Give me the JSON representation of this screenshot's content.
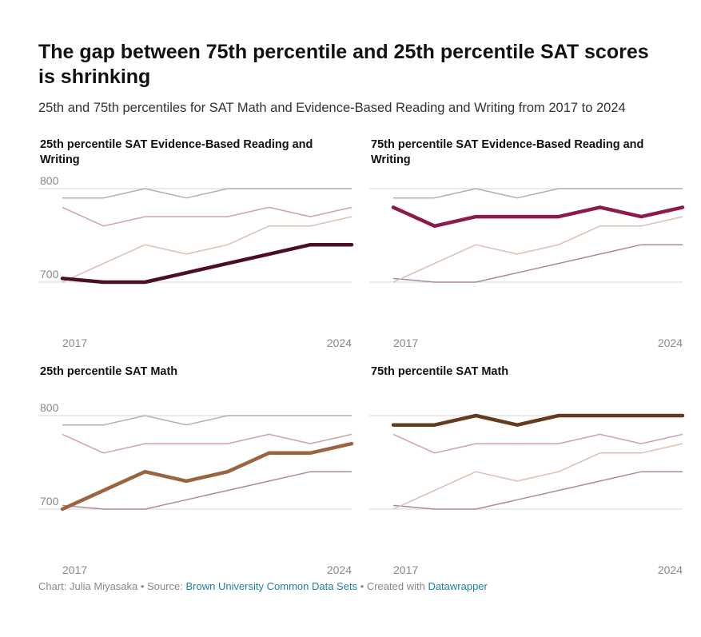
{
  "title": "The gap between 75th percentile and 25th percentile SAT scores is shrinking",
  "subtitle": "25th and 75th percentiles for SAT Math and Evidence-Based Reading and Writing from 2017 to 2024",
  "footer": {
    "chart_by": "Chart: Julia Miyasaka",
    "sep1": " • Source: ",
    "source": "Brown University Common Data Sets",
    "sep2": " • Created with ",
    "tool": "Datawrapper"
  },
  "colors": {
    "ebrw25": "#4a0f24",
    "ebrw75": "#8c1a4b",
    "math25": "#9a6440",
    "math75": "#663a1e",
    "context": {
      "ebrw25": "#ab8c9b",
      "ebrw75": "#cfa0ae",
      "math25": "#d8c0b2",
      "math75": "#bcaca3"
    },
    "grid": "#dddddd",
    "tick": "#888888"
  },
  "chart_data": [
    {
      "type": "line",
      "key": "ebrw25",
      "title": "25th percentile SAT Evidence-Based Reading and Writing",
      "x": [
        2017,
        2018,
        2019,
        2020,
        2021,
        2022,
        2023,
        2024
      ],
      "x_tick_labels": [
        "2017",
        "2024"
      ],
      "y_tick_labels": [
        "800",
        "700"
      ],
      "ylim": [
        700,
        800
      ],
      "series": [
        {
          "key": "ebrw25",
          "values": [
            704,
            700,
            700,
            710,
            720,
            730,
            740,
            740
          ]
        },
        {
          "key": "ebrw75",
          "values": [
            780,
            760,
            770,
            770,
            770,
            780,
            770,
            780
          ]
        },
        {
          "key": "math25",
          "values": [
            700,
            720,
            740,
            730,
            740,
            760,
            760,
            770
          ]
        },
        {
          "key": "math75",
          "values": [
            790,
            790,
            800,
            790,
            800,
            800,
            800,
            800
          ]
        }
      ]
    },
    {
      "type": "line",
      "key": "ebrw75",
      "title": "75th percentile SAT Evidence-Based Reading and Writing",
      "x": [
        2017,
        2018,
        2019,
        2020,
        2021,
        2022,
        2023,
        2024
      ],
      "x_tick_labels": [
        "2017",
        "2024"
      ],
      "y_tick_labels": [],
      "ylim": [
        700,
        800
      ],
      "series": [
        {
          "key": "ebrw25",
          "values": [
            704,
            700,
            700,
            710,
            720,
            730,
            740,
            740
          ]
        },
        {
          "key": "ebrw75",
          "values": [
            780,
            760,
            770,
            770,
            770,
            780,
            770,
            780
          ]
        },
        {
          "key": "math25",
          "values": [
            700,
            720,
            740,
            730,
            740,
            760,
            760,
            770
          ]
        },
        {
          "key": "math75",
          "values": [
            790,
            790,
            800,
            790,
            800,
            800,
            800,
            800
          ]
        }
      ]
    },
    {
      "type": "line",
      "key": "math25",
      "title": "25th percentile SAT Math",
      "x": [
        2017,
        2018,
        2019,
        2020,
        2021,
        2022,
        2023,
        2024
      ],
      "x_tick_labels": [
        "2017",
        "2024"
      ],
      "y_tick_labels": [
        "800",
        "700"
      ],
      "ylim": [
        700,
        800
      ],
      "series": [
        {
          "key": "ebrw25",
          "values": [
            704,
            700,
            700,
            710,
            720,
            730,
            740,
            740
          ]
        },
        {
          "key": "ebrw75",
          "values": [
            780,
            760,
            770,
            770,
            770,
            780,
            770,
            780
          ]
        },
        {
          "key": "math25",
          "values": [
            700,
            720,
            740,
            730,
            740,
            760,
            760,
            770
          ]
        },
        {
          "key": "math75",
          "values": [
            790,
            790,
            800,
            790,
            800,
            800,
            800,
            800
          ]
        }
      ]
    },
    {
      "type": "line",
      "key": "math75",
      "title": "75th percentile SAT Math",
      "x": [
        2017,
        2018,
        2019,
        2020,
        2021,
        2022,
        2023,
        2024
      ],
      "x_tick_labels": [
        "2017",
        "2024"
      ],
      "y_tick_labels": [],
      "ylim": [
        700,
        800
      ],
      "series": [
        {
          "key": "ebrw25",
          "values": [
            704,
            700,
            700,
            710,
            720,
            730,
            740,
            740
          ]
        },
        {
          "key": "ebrw75",
          "values": [
            780,
            760,
            770,
            770,
            770,
            780,
            770,
            780
          ]
        },
        {
          "key": "math25",
          "values": [
            700,
            720,
            740,
            730,
            740,
            760,
            760,
            770
          ]
        },
        {
          "key": "math75",
          "values": [
            790,
            790,
            800,
            790,
            800,
            800,
            800,
            800
          ]
        }
      ]
    }
  ]
}
